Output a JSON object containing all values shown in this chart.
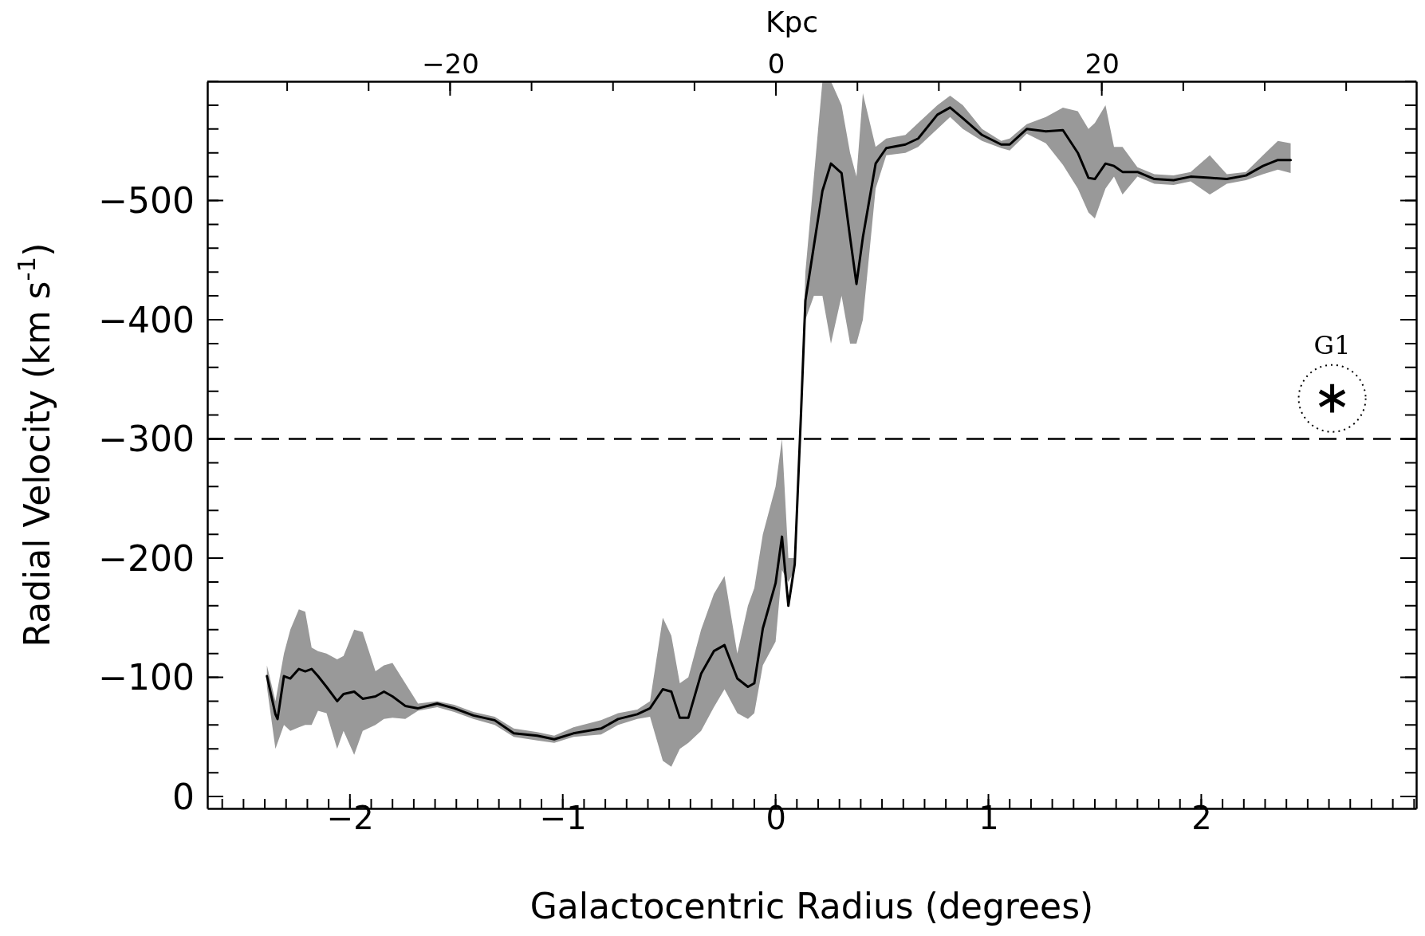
{
  "chart_data": {
    "type": "line",
    "xlabel": "Galactocentric Radius (degrees)",
    "ylabel": "Radial Velocity (km s$^{-1}$)",
    "x2label": "Kpc",
    "xlim": [
      -2.67,
      3.01
    ],
    "ylim": [
      10,
      -600
    ],
    "x2lim": [
      -34.9,
      39.3
    ],
    "xticks": [
      {
        "value": -2,
        "label": "−2"
      },
      {
        "value": -1,
        "label": "−1"
      },
      0,
      1,
      2
    ],
    "x2ticks": [
      {
        "value": -20,
        "label": "−20"
      },
      0,
      20
    ],
    "yticks": [
      0,
      {
        "value": -100,
        "label": "−100"
      },
      {
        "value": -200,
        "label": "−200"
      },
      {
        "value": -300,
        "label": "−300"
      },
      {
        "value": -400,
        "label": "−400"
      },
      {
        "value": -500,
        "label": "−500"
      }
    ],
    "ref_lines": [
      {
        "axis": "y",
        "value": -300,
        "line_style": "dashed",
        "color": "#000000"
      }
    ],
    "series": [
      {
        "color": "#000000",
        "line_style": "solid",
        "marker": "none",
        "x": [
          -2.39,
          -2.35,
          -2.34,
          -2.31,
          -2.28,
          -2.24,
          -2.21,
          -2.18,
          -2.15,
          -2.11,
          -2.06,
          -2.03,
          -1.98,
          -1.94,
          -1.88,
          -1.84,
          -1.8,
          -1.74,
          -1.68,
          -1.59,
          -1.51,
          -1.42,
          -1.32,
          -1.23,
          -1.12,
          -1.04,
          -0.95,
          -0.82,
          -0.74,
          -0.65,
          -0.59,
          -0.53,
          -0.49,
          -0.45,
          -0.41,
          -0.35,
          -0.29,
          -0.24,
          -0.18,
          -0.13,
          -0.1,
          -0.06,
          0,
          0.03,
          0.06,
          0.09,
          0.12,
          0.14,
          0.18,
          0.22,
          0.26,
          0.31,
          0.35,
          0.38,
          0.41,
          0.47,
          0.52,
          0.61,
          0.67,
          0.76,
          0.82,
          0.88,
          0.97,
          1.06,
          1.1,
          1.18,
          1.27,
          1.35,
          1.42,
          1.47,
          1.5,
          1.55,
          1.59,
          1.63,
          1.7,
          1.78,
          1.87,
          1.95,
          2.04,
          2.12,
          2.21,
          2.29,
          2.36,
          2.42
        ],
        "values": [
          -101,
          -69,
          -65,
          -101,
          -99,
          -107,
          -105,
          -107,
          -101,
          -92,
          -80,
          -86,
          -88,
          -82,
          -84,
          -88,
          -84,
          -76,
          -74,
          -78,
          -74,
          -68,
          -64,
          -53,
          -51,
          -48,
          -53,
          -57,
          -65,
          -69,
          -74,
          -90,
          -88,
          -66,
          -66,
          -103,
          -122,
          -127,
          -99,
          -92,
          -95,
          -141,
          -179,
          -218,
          -160,
          -195,
          -324,
          -416,
          -462,
          -508,
          -531,
          -523,
          -469,
          -430,
          -469,
          -531,
          -544,
          -547,
          -552,
          -572,
          -578,
          -569,
          -555,
          -547,
          -547,
          -560,
          -558,
          -559,
          -540,
          -519,
          -518,
          -531,
          -529,
          -524,
          -524,
          -518,
          -517,
          -520,
          -519,
          -518,
          -521,
          -529,
          -534,
          -534
        ],
        "lower": [
          -110,
          -80,
          -90,
          -120,
          -140,
          -157,
          -155,
          -125,
          -122,
          -120,
          -115,
          -118,
          -140,
          -138,
          -105,
          -110,
          -112,
          -95,
          -78,
          -80,
          -77,
          -71,
          -67,
          -57,
          -54,
          -51,
          -58,
          -64,
          -70,
          -73,
          -80,
          -150,
          -135,
          -95,
          -100,
          -140,
          -170,
          -185,
          -120,
          -160,
          -175,
          -220,
          -260,
          -300,
          -200,
          -200,
          -330,
          -440,
          -520,
          -600,
          -600,
          -580,
          -540,
          -520,
          -590,
          -545,
          -552,
          -555,
          -565,
          -580,
          -588,
          -580,
          -560,
          -550,
          -552,
          -564,
          -570,
          -578,
          -575,
          -560,
          -565,
          -580,
          -545,
          -545,
          -528,
          -522,
          -521,
          -524,
          -538,
          -522,
          -524,
          -538,
          -550,
          -548
        ],
        "upper": [
          -92,
          -40,
          -45,
          -60,
          -55,
          -58,
          -60,
          -60,
          -72,
          -70,
          -40,
          -55,
          -35,
          -55,
          -60,
          -65,
          -66,
          -65,
          -72,
          -75,
          -71,
          -65,
          -60,
          -50,
          -47,
          -45,
          -50,
          -52,
          -60,
          -65,
          -67,
          -30,
          -25,
          -40,
          -45,
          -55,
          -75,
          -90,
          -70,
          -65,
          -70,
          -110,
          -130,
          -190,
          -180,
          -190,
          -320,
          -400,
          -420,
          -420,
          -380,
          -420,
          -380,
          -380,
          -400,
          -510,
          -538,
          -540,
          -545,
          -560,
          -570,
          -560,
          -550,
          -544,
          -542,
          -556,
          -548,
          -530,
          -510,
          -490,
          -485,
          -510,
          -520,
          -505,
          -520,
          -514,
          -513,
          -516,
          -505,
          -514,
          -517,
          -522,
          -526,
          -523
        ]
      },
      {
        "type": "scatter",
        "name": "G1",
        "color": "#000000",
        "marker": "cross",
        "x": [
          2.615
        ],
        "values": [
          -334
        ]
      }
    ]
  }
}
